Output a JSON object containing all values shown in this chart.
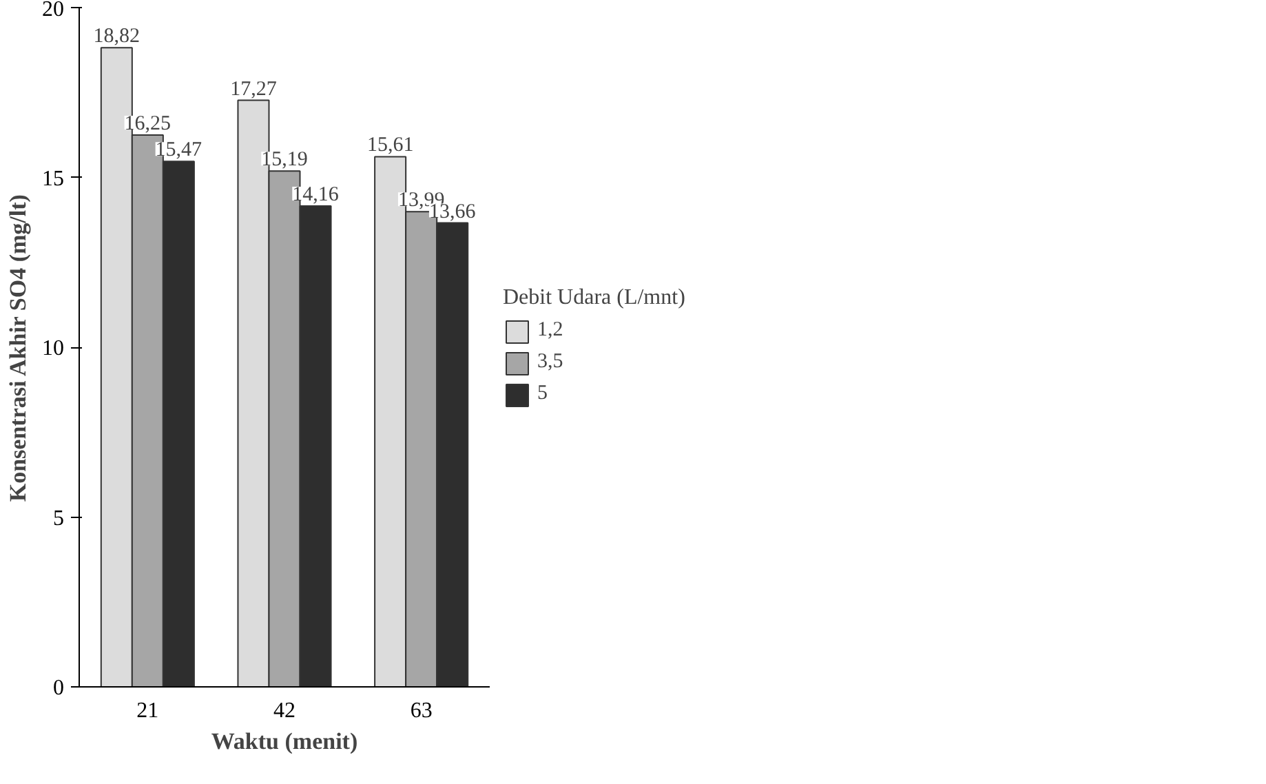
{
  "chart_data": {
    "type": "bar",
    "categories": [
      "21",
      "42",
      "63"
    ],
    "xlabel": "Waktu (menit)",
    "ylabel": "Konsentrasi Akhir SO4 (mg/lt)",
    "legend_title": "Debit Udara (L/mnt)",
    "series": [
      {
        "name": "1,2",
        "color": "#dcdcdc",
        "values": [
          18.82,
          17.27,
          15.61
        ],
        "value_labels": [
          "18,82",
          "17,27",
          "15,61"
        ]
      },
      {
        "name": "3,5",
        "color": "#a6a6a6",
        "values": [
          16.25,
          15.19,
          13.99
        ],
        "value_labels": [
          "16,25",
          "15,19",
          "13,99"
        ]
      },
      {
        "name": "5",
        "color": "#2e2e2e",
        "values": [
          15.47,
          14.16,
          13.66
        ],
        "value_labels": [
          "15,47",
          "14,16",
          "13,66"
        ]
      }
    ],
    "ylim": [
      0,
      20
    ],
    "yticks": [
      0,
      5,
      10,
      15,
      20
    ],
    "grid": false,
    "legend": "right"
  }
}
